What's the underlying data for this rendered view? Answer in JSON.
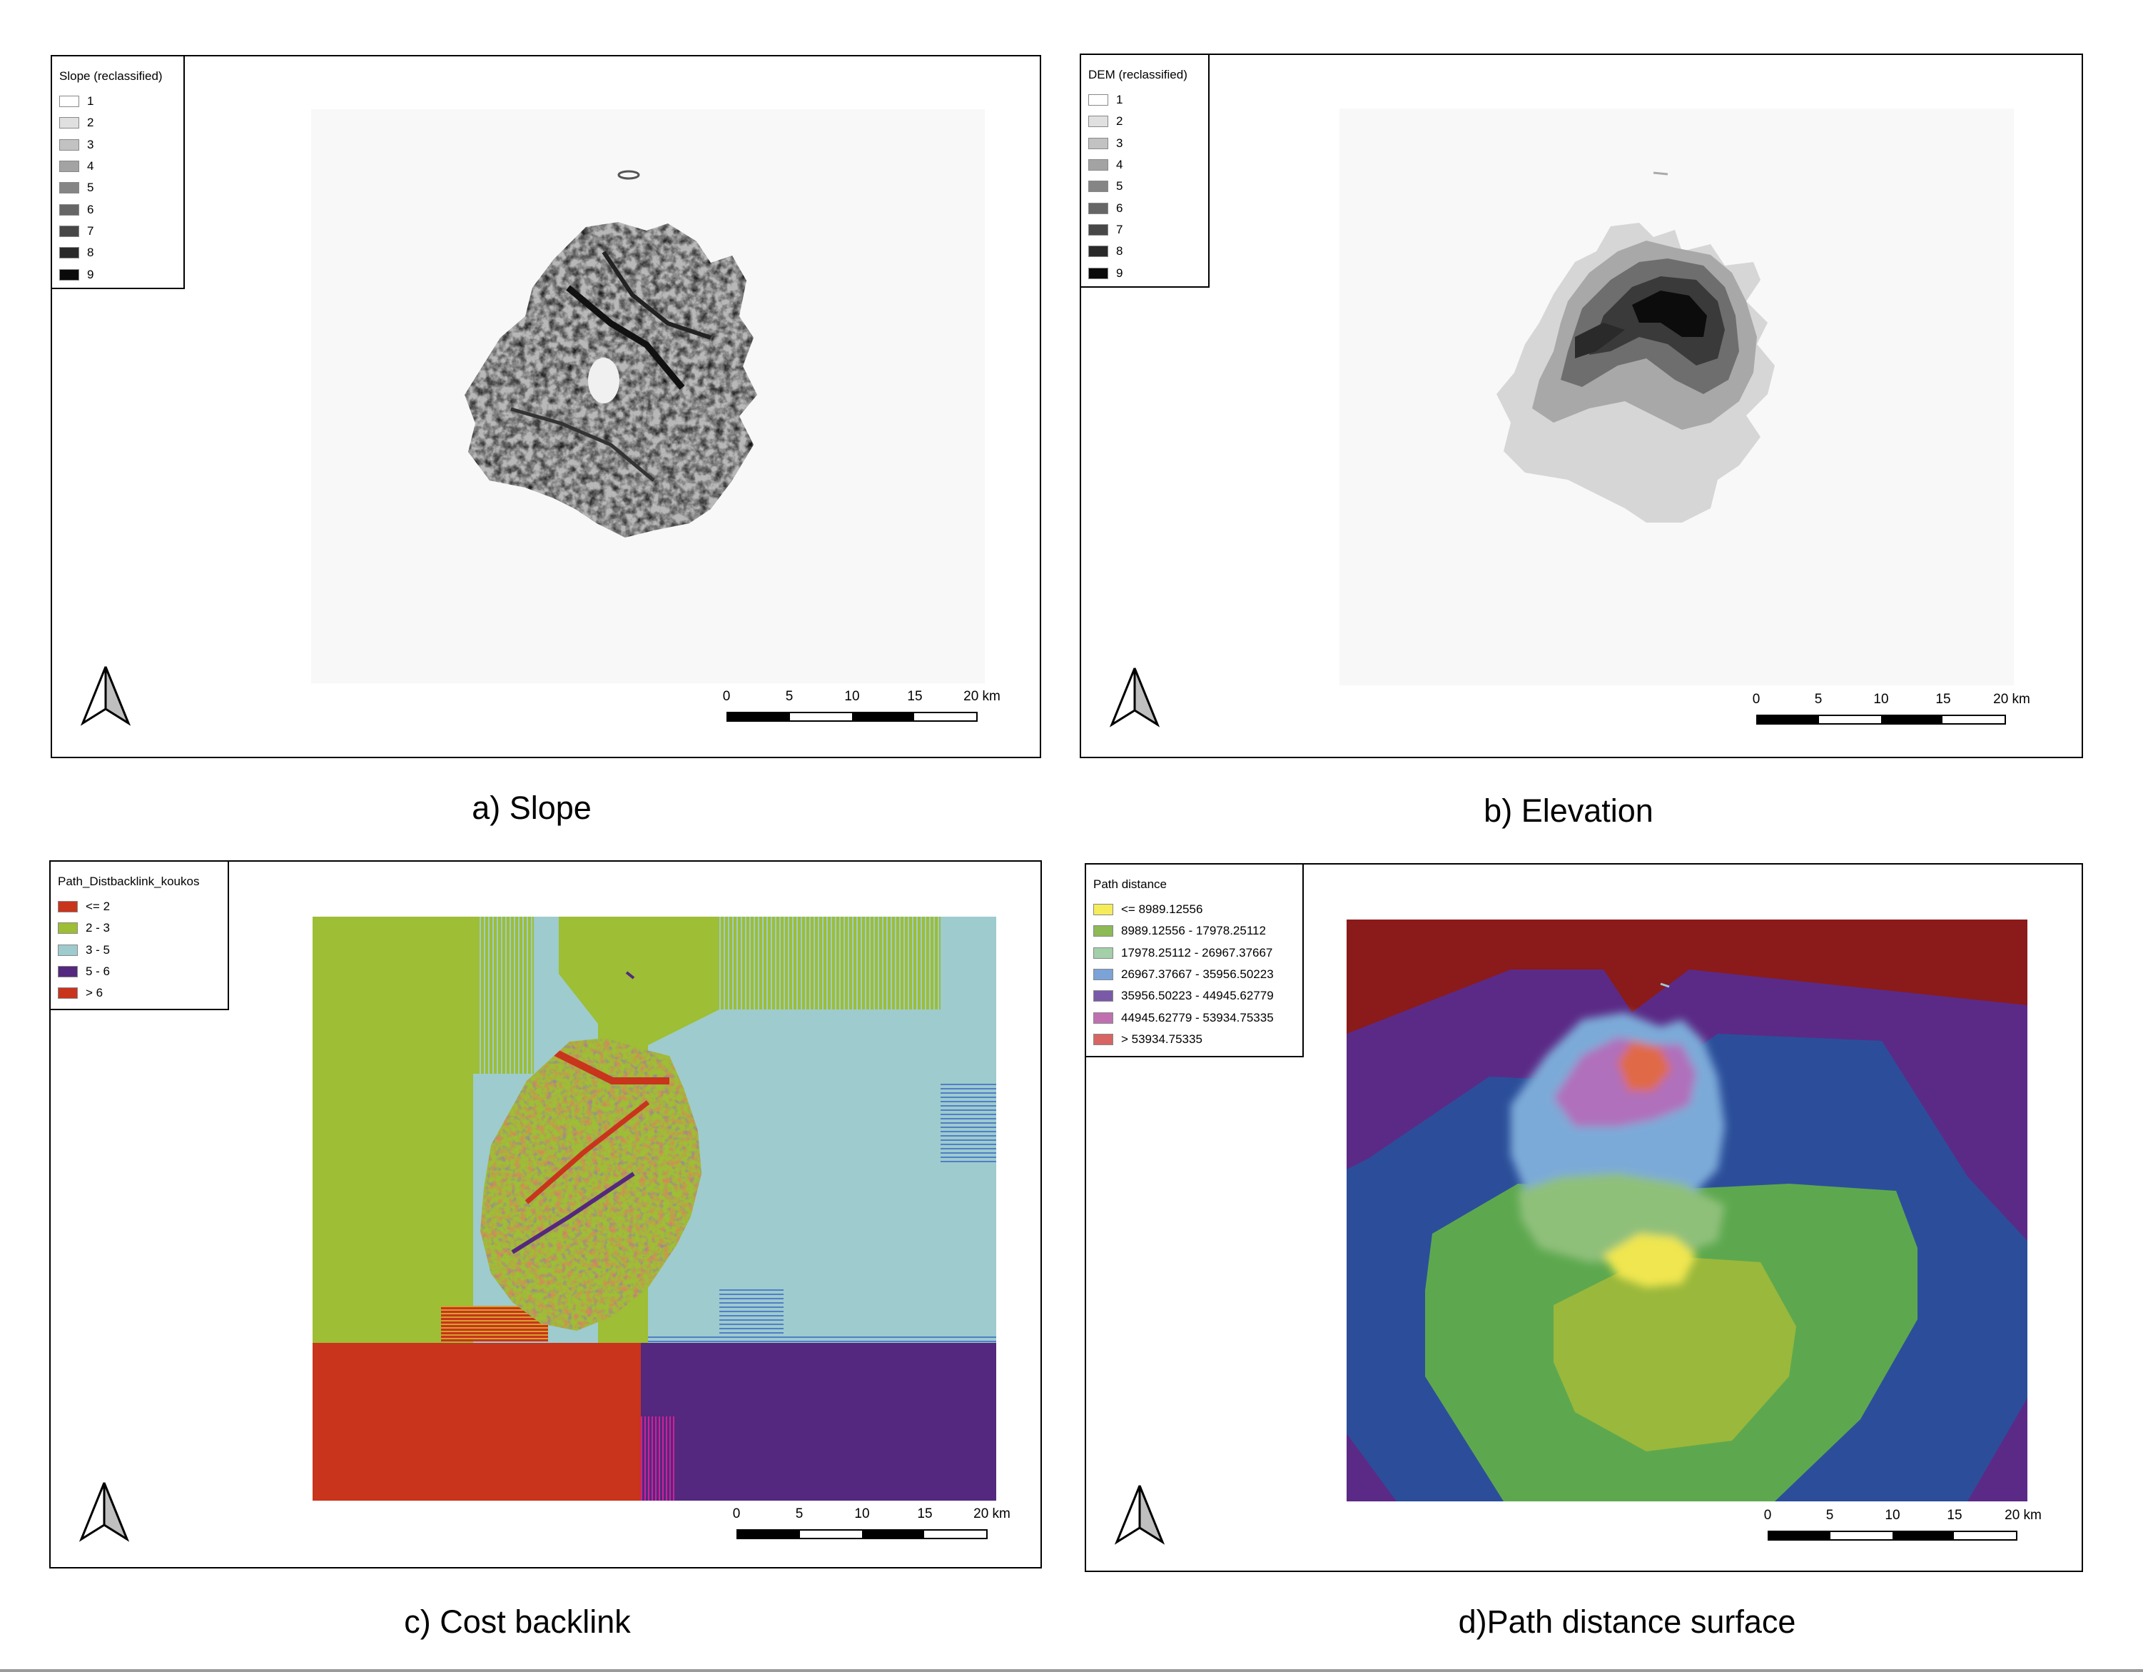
{
  "panels": {
    "a": {
      "caption": "a) Slope",
      "legend": {
        "title": "Slope (reclassified)",
        "items": [
          {
            "label": "1",
            "color": "#ffffff"
          },
          {
            "label": "2",
            "color": "#e0e0e0"
          },
          {
            "label": "3",
            "color": "#c2c2c2"
          },
          {
            "label": "4",
            "color": "#a3a3a3"
          },
          {
            "label": "5",
            "color": "#858585"
          },
          {
            "label": "6",
            "color": "#666666"
          },
          {
            "label": "7",
            "color": "#474747"
          },
          {
            "label": "8",
            "color": "#292929"
          },
          {
            "label": "9",
            "color": "#0a0a0a"
          }
        ]
      },
      "scale": {
        "ticks": [
          "0",
          "5",
          "10",
          "15"
        ],
        "end": "20 km"
      }
    },
    "b": {
      "caption": "b) Elevation",
      "legend": {
        "title": "DEM (reclassified)",
        "items": [
          {
            "label": "1",
            "color": "#ffffff"
          },
          {
            "label": "2",
            "color": "#e0e0e0"
          },
          {
            "label": "3",
            "color": "#c2c2c2"
          },
          {
            "label": "4",
            "color": "#a3a3a3"
          },
          {
            "label": "5",
            "color": "#858585"
          },
          {
            "label": "6",
            "color": "#666666"
          },
          {
            "label": "7",
            "color": "#474747"
          },
          {
            "label": "8",
            "color": "#292929"
          },
          {
            "label": "9",
            "color": "#0a0a0a"
          }
        ]
      },
      "scale": {
        "ticks": [
          "0",
          "5",
          "10",
          "15"
        ],
        "end": "20 km"
      }
    },
    "c": {
      "caption": "c) Cost backlink",
      "legend": {
        "title": "Path_Distbacklink_koukos",
        "items": [
          {
            "label": "<= 2",
            "color": "#c8341c"
          },
          {
            "label": "2 - 3",
            "color": "#9dbe35"
          },
          {
            "label": "3 - 5",
            "color": "#9ecbcd"
          },
          {
            "label": "5 - 6",
            "color": "#54287e"
          },
          {
            "label": "> 6",
            "color": "#c8341c"
          }
        ]
      },
      "scale": {
        "ticks": [
          "0",
          "5",
          "10",
          "15"
        ],
        "end": "20 km"
      }
    },
    "d": {
      "caption": "d)Path distance surface",
      "legend": {
        "title": "Path distance",
        "items": [
          {
            "label": "<= 8989.12556",
            "color": "#f5ec5a"
          },
          {
            "label": "8989.12556 - 17978.25112",
            "color": "#8cba55"
          },
          {
            "label": "17978.25112 - 26967.37667",
            "color": "#a3cfa9"
          },
          {
            "label": "26967.37667 - 35956.50223",
            "color": "#7ba3d8"
          },
          {
            "label": "35956.50223 - 44945.62779",
            "color": "#7a59a8"
          },
          {
            "label": "44945.62779 - 53934.75335",
            "color": "#c070b0"
          },
          {
            "label": "> 53934.75335",
            "color": "#d86464"
          }
        ]
      },
      "scale": {
        "ticks": [
          "0",
          "5",
          "10",
          "15"
        ],
        "end": "20 km"
      }
    }
  }
}
